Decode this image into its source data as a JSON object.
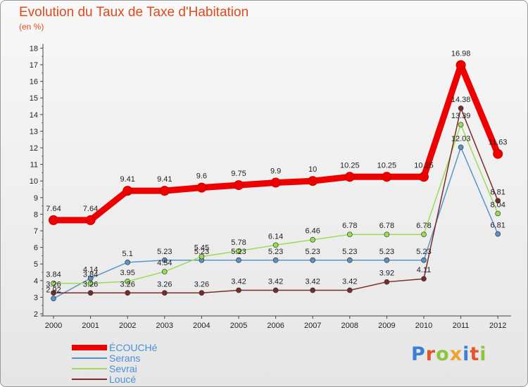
{
  "header": {
    "title": "Evolution du Taux de Taxe d'Habitation",
    "subtitle": "(en %)"
  },
  "logo": {
    "text": "Proxiti",
    "colors": [
      "#3d7fd6",
      "#e8542a",
      "#8cc63f",
      "#f0a22e",
      "#3d7fd6",
      "#e8542a",
      "#8cc63f"
    ]
  },
  "chart_data": {
    "type": "line",
    "x": [
      "2000",
      "2001",
      "2002",
      "2003",
      "2004",
      "2005",
      "2006",
      "2007",
      "2008",
      "2009",
      "2010",
      "2011",
      "2012"
    ],
    "ylim": [
      2,
      18
    ],
    "yticks": [
      2,
      3,
      4,
      5,
      6,
      7,
      8,
      9,
      10,
      11,
      12,
      13,
      14,
      15,
      16,
      17,
      18
    ],
    "grid": false,
    "legend_position": "bottom-left",
    "series": [
      {
        "name": "ÉCOUCHé",
        "color": "#ee0000",
        "thick": true,
        "values": [
          7.64,
          7.64,
          9.41,
          9.41,
          9.6,
          9.75,
          9.9,
          10,
          10.25,
          10.25,
          10.25,
          16.98,
          11.63
        ],
        "labels": [
          "7.64",
          "7.64",
          "9.41",
          "9.41",
          "9.6",
          "9.75",
          "9.9",
          "10",
          "10.25",
          "10.25",
          "10.25",
          "16.98",
          "11.63"
        ]
      },
      {
        "name": "Serans",
        "color": "#5b93c9",
        "thick": false,
        "values": [
          2.92,
          4.14,
          5.1,
          5.23,
          5.23,
          5.23,
          5.23,
          5.23,
          5.23,
          5.23,
          5.23,
          12.03,
          6.81
        ],
        "labels": [
          "2.92",
          "4.14",
          "5.1",
          "5.23",
          "5.23",
          "5.23",
          "5.23",
          "5.23",
          "5.23",
          "5.23",
          "5.23",
          "12.03",
          "6.81"
        ]
      },
      {
        "name": "Sevrai",
        "color": "#99dd55",
        "thick": false,
        "values": [
          3.84,
          3.84,
          3.95,
          4.54,
          5.45,
          5.78,
          6.14,
          6.46,
          6.78,
          6.78,
          6.78,
          13.39,
          8.04
        ],
        "labels": [
          "3.84",
          "3.84",
          "3.95",
          "4.54",
          "5.45",
          "5.78",
          "6.14",
          "6.46",
          "6.78",
          "6.78",
          "6.78",
          "13.39",
          "8.04"
        ]
      },
      {
        "name": "Loucé",
        "color": "#7a2a2a",
        "thick": false,
        "values": [
          3.26,
          3.26,
          3.26,
          3.26,
          3.26,
          3.42,
          3.42,
          3.42,
          3.42,
          3.92,
          4.11,
          14.38,
          8.81
        ],
        "labels": [
          "3.26",
          "3.26",
          "3.26",
          "3.26",
          "3.26",
          "3.42",
          "3.42",
          "3.42",
          "3.42",
          "3.92",
          "4.11",
          "14.38",
          "8.81"
        ]
      }
    ]
  }
}
